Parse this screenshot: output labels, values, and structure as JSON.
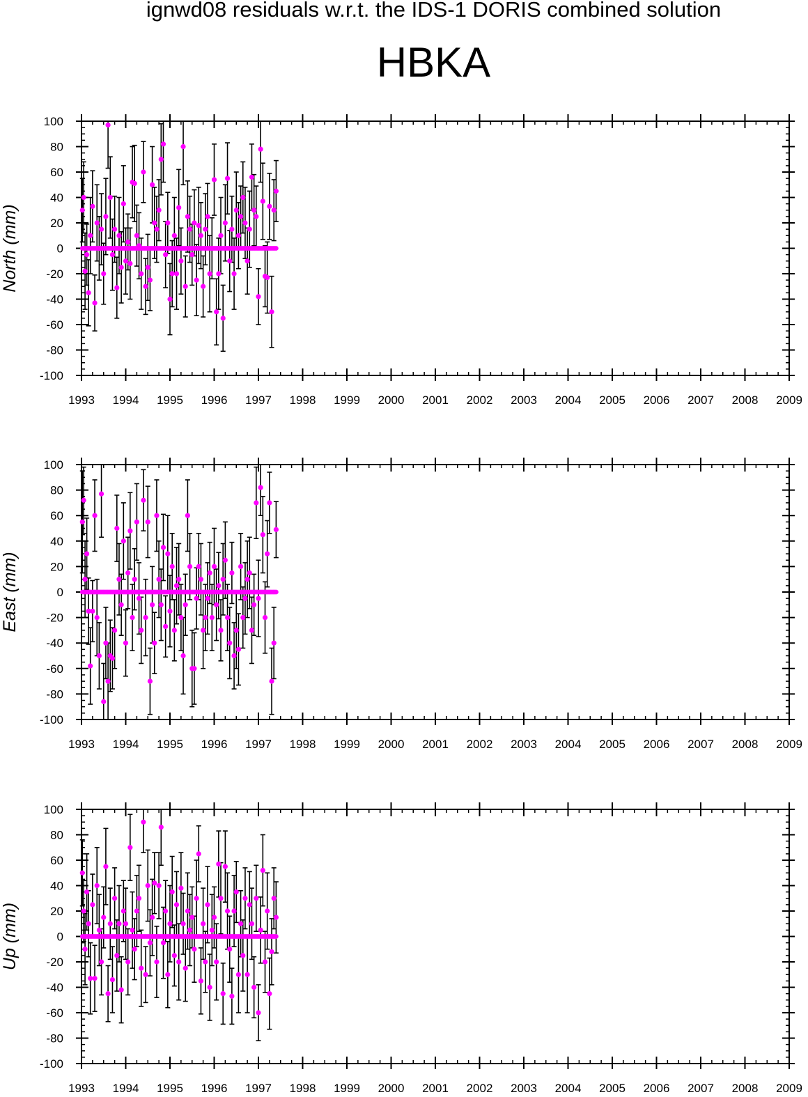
{
  "figure": {
    "suptitle": "ignwd08 residuals w.r.t. the IDS-1 DORIS combined solution",
    "station": "HBKA"
  },
  "colors": {
    "marker": "#ff00ff",
    "errorbar": "#000000",
    "axes": "#000000"
  },
  "chart_data": [
    {
      "type": "scatter",
      "ylabel": "North (mm)",
      "ylim": [
        -100,
        100
      ],
      "xlim": [
        1993,
        2009
      ],
      "x_ticks": [
        "1993",
        "1994",
        "1995",
        "1996",
        "1997",
        "1998",
        "1999",
        "2000",
        "2001",
        "2002",
        "2003",
        "2004",
        "2005",
        "2006",
        "2007",
        "2008",
        "2009"
      ],
      "y_ticks": [
        "-100",
        "-80",
        "-60",
        "-40",
        "-20",
        "0",
        "20",
        "40",
        "60",
        "80",
        "100"
      ],
      "series": [
        {
          "x": [
            1993.02,
            1993.05,
            1993.08,
            1993.12,
            1993.16,
            1993.2,
            1993.25,
            1993.3,
            1993.35,
            1993.4,
            1993.45,
            1993.5,
            1993.55,
            1993.6,
            1993.65,
            1993.7,
            1993.75,
            1993.8,
            1993.85,
            1993.9,
            1993.95,
            1994.0,
            1994.05,
            1994.1,
            1994.15,
            1994.2,
            1994.25,
            1994.3,
            1994.35,
            1994.4,
            1994.45,
            1994.5,
            1994.55,
            1994.6,
            1994.65,
            1994.7,
            1994.75,
            1994.8,
            1994.85,
            1994.9,
            1994.95,
            1995.0,
            1995.05,
            1995.1,
            1995.15,
            1995.2,
            1995.25,
            1995.3,
            1995.35,
            1995.4,
            1995.45,
            1995.5,
            1995.55,
            1995.6,
            1995.65,
            1995.7,
            1995.75,
            1995.8,
            1995.85,
            1995.9,
            1995.95,
            1996.0,
            1996.05,
            1996.1,
            1996.15,
            1996.2,
            1996.25,
            1996.3,
            1996.35,
            1996.4,
            1996.45,
            1996.5,
            1996.55,
            1996.6,
            1996.65,
            1996.7,
            1996.75,
            1996.8,
            1996.85,
            1996.9,
            1996.95,
            1997.0,
            1997.05,
            1997.1,
            1997.15,
            1997.2,
            1997.25,
            1997.3,
            1997.35,
            1997.4
          ],
          "y": [
            30,
            40,
            -18,
            -5,
            -35,
            10,
            33,
            -43,
            20,
            0,
            15,
            -20,
            25,
            97,
            40,
            -5,
            15,
            -31,
            10,
            -15,
            35,
            -10,
            5,
            -12,
            52,
            51,
            10,
            2,
            -20,
            60,
            -30,
            -15,
            -25,
            50,
            20,
            15,
            30,
            70,
            82,
            -5,
            20,
            -40,
            -20,
            10,
            -20,
            32,
            -10,
            80,
            -30,
            25,
            15,
            -5,
            20,
            -25,
            18,
            10,
            -30,
            15,
            25,
            -20,
            0,
            54,
            -50,
            -20,
            10,
            -55,
            20,
            55,
            -10,
            15,
            -20,
            30,
            10,
            25,
            40,
            20,
            -10,
            15,
            56,
            30,
            25,
            -38,
            78,
            37,
            -22,
            -23,
            33,
            -50,
            30,
            45
          ],
          "err": [
            25,
            28,
            30,
            24,
            26,
            30,
            28,
            22,
            30,
            25,
            28,
            24,
            30,
            34,
            32,
            28,
            26,
            24,
            30,
            28,
            30,
            26,
            22,
            28,
            28,
            30,
            24,
            26,
            28,
            24,
            22,
            26,
            24,
            30,
            28,
            26,
            24,
            28,
            30,
            26,
            24,
            28,
            26,
            30,
            28,
            30,
            26,
            30,
            24,
            28,
            26,
            24,
            26,
            28,
            30,
            26,
            24,
            28,
            26,
            30,
            24,
            28,
            26,
            28,
            30,
            26,
            30,
            28,
            24,
            26,
            28,
            30,
            26,
            24,
            28,
            28,
            26,
            30,
            26,
            28,
            24,
            22,
            26,
            30,
            24,
            28,
            26,
            28,
            24,
            24
          ]
        }
      ]
    },
    {
      "type": "scatter",
      "ylabel": "East (mm)",
      "ylim": [
        -100,
        100
      ],
      "xlim": [
        1993,
        2009
      ],
      "x_ticks": [
        "1993",
        "1994",
        "1995",
        "1996",
        "1997",
        "1998",
        "1999",
        "2000",
        "2001",
        "2002",
        "2003",
        "2004",
        "2005",
        "2006",
        "2007",
        "2008",
        "2009"
      ],
      "y_ticks": [
        "-100",
        "-80",
        "-60",
        "-40",
        "-20",
        "0",
        "20",
        "40",
        "60",
        "80",
        "100"
      ],
      "series": [
        {
          "x": [
            1993.02,
            1993.05,
            1993.08,
            1993.12,
            1993.16,
            1993.2,
            1993.25,
            1993.3,
            1993.35,
            1993.4,
            1993.45,
            1993.5,
            1993.55,
            1993.6,
            1993.65,
            1993.7,
            1993.75,
            1993.8,
            1993.85,
            1993.9,
            1993.95,
            1994.0,
            1994.05,
            1994.1,
            1994.15,
            1994.2,
            1994.25,
            1994.3,
            1994.35,
            1994.4,
            1994.45,
            1994.5,
            1994.55,
            1994.6,
            1994.65,
            1994.7,
            1994.75,
            1994.8,
            1994.85,
            1994.9,
            1994.95,
            1995.0,
            1995.05,
            1995.1,
            1995.15,
            1995.2,
            1995.25,
            1995.3,
            1995.35,
            1995.4,
            1995.45,
            1995.5,
            1995.55,
            1995.6,
            1995.65,
            1995.7,
            1995.75,
            1995.8,
            1995.85,
            1995.9,
            1995.95,
            1996.0,
            1996.05,
            1996.1,
            1996.15,
            1996.2,
            1996.25,
            1996.3,
            1996.35,
            1996.4,
            1996.45,
            1996.5,
            1996.55,
            1996.6,
            1996.65,
            1996.7,
            1996.75,
            1996.8,
            1996.85,
            1996.9,
            1996.95,
            1997.0,
            1997.05,
            1997.1,
            1997.15,
            1997.2,
            1997.25,
            1997.3,
            1997.35,
            1997.4
          ],
          "y": [
            55,
            72,
            10,
            30,
            -15,
            -58,
            -15,
            60,
            -20,
            -50,
            77,
            -86,
            -40,
            -70,
            -50,
            -52,
            -30,
            50,
            10,
            -10,
            40,
            -40,
            15,
            48,
            -20,
            10,
            55,
            -5,
            -30,
            72,
            -20,
            55,
            -70,
            -10,
            -40,
            60,
            10,
            -10,
            35,
            -27,
            30,
            -15,
            20,
            -30,
            5,
            10,
            -20,
            -50,
            -10,
            60,
            20,
            -60,
            -60,
            -5,
            20,
            10,
            -30,
            -20,
            -5,
            15,
            -20,
            20,
            -10,
            5,
            -30,
            10,
            25,
            -20,
            -40,
            15,
            -50,
            -30,
            -45,
            20,
            -20,
            -5,
            10,
            15,
            -30,
            -10,
            70,
            -5,
            82,
            45,
            -20,
            30,
            70,
            -70,
            -40,
            49
          ],
          "err": [
            40,
            26,
            30,
            28,
            26,
            30,
            24,
            28,
            30,
            26,
            34,
            30,
            28,
            30,
            28,
            24,
            30,
            26,
            28,
            24,
            30,
            26,
            28,
            30,
            26,
            24,
            30,
            28,
            26,
            24,
            30,
            28,
            26,
            30,
            24,
            28,
            30,
            28,
            26,
            24,
            30,
            28,
            26,
            24,
            30,
            28,
            26,
            30,
            24,
            28,
            26,
            30,
            28,
            24,
            26,
            28,
            30,
            26,
            28,
            24,
            26,
            30,
            28,
            26,
            24,
            28,
            30,
            26,
            28,
            24,
            26,
            30,
            28,
            26,
            24,
            28,
            30,
            28,
            26,
            24,
            28,
            30,
            22,
            30,
            28,
            26,
            24,
            26,
            28,
            22
          ]
        }
      ]
    },
    {
      "type": "scatter",
      "ylabel": "Up (mm)",
      "ylim": [
        -100,
        100
      ],
      "xlim": [
        1993,
        2009
      ],
      "x_ticks": [
        "1993",
        "1994",
        "1995",
        "1996",
        "1997",
        "1998",
        "1999",
        "2000",
        "2001",
        "2002",
        "2003",
        "2004",
        "2005",
        "2006",
        "2007",
        "2008",
        "2009"
      ],
      "y_ticks": [
        "-100",
        "-80",
        "-60",
        "-40",
        "-20",
        "0",
        "20",
        "40",
        "60",
        "80",
        "100"
      ],
      "series": [
        {
          "x": [
            1993.02,
            1993.05,
            1993.08,
            1993.12,
            1993.16,
            1993.2,
            1993.25,
            1993.3,
            1993.35,
            1993.4,
            1993.45,
            1993.5,
            1993.55,
            1993.6,
            1993.65,
            1993.7,
            1993.75,
            1993.8,
            1993.85,
            1993.9,
            1993.95,
            1994.0,
            1994.05,
            1994.1,
            1994.15,
            1994.2,
            1994.25,
            1994.3,
            1994.35,
            1994.4,
            1994.45,
            1994.5,
            1994.55,
            1994.6,
            1994.65,
            1994.7,
            1994.75,
            1994.8,
            1994.85,
            1994.9,
            1994.95,
            1995.0,
            1995.05,
            1995.1,
            1995.15,
            1995.2,
            1995.25,
            1995.3,
            1995.35,
            1995.4,
            1995.45,
            1995.5,
            1995.55,
            1995.6,
            1995.65,
            1995.7,
            1995.75,
            1995.8,
            1995.85,
            1995.9,
            1995.95,
            1996.0,
            1996.05,
            1996.1,
            1996.15,
            1996.2,
            1996.25,
            1996.3,
            1996.35,
            1996.4,
            1996.45,
            1996.5,
            1996.55,
            1996.6,
            1996.65,
            1996.7,
            1996.75,
            1996.8,
            1996.85,
            1996.9,
            1996.95,
            1997.0,
            1997.05,
            1997.1,
            1997.15,
            1997.2,
            1997.25,
            1997.3,
            1997.35,
            1997.4
          ],
          "y": [
            50,
            20,
            -10,
            35,
            10,
            -33,
            25,
            -33,
            40,
            5,
            -20,
            15,
            55,
            -45,
            10,
            -34,
            30,
            -15,
            10,
            -42,
            20,
            10,
            -20,
            70,
            5,
            -10,
            20,
            30,
            -25,
            90,
            -30,
            40,
            -5,
            15,
            42,
            -20,
            40,
            86,
            -5,
            20,
            -30,
            10,
            35,
            -15,
            25,
            -20,
            38,
            10,
            -25,
            20,
            5,
            15,
            -10,
            30,
            65,
            -35,
            10,
            -20,
            25,
            -40,
            5,
            15,
            -20,
            57,
            30,
            -45,
            55,
            20,
            -10,
            -47,
            20,
            35,
            -30,
            10,
            -15,
            30,
            -30,
            25,
            10,
            -40,
            30,
            -60,
            5,
            52,
            -20,
            20,
            -45,
            -12,
            30,
            15
          ],
          "err": [
            26,
            24,
            28,
            30,
            26,
            28,
            24,
            26,
            30,
            28,
            26,
            24,
            30,
            22,
            28,
            26,
            24,
            28,
            30,
            26,
            24,
            28,
            26,
            26,
            30,
            24,
            28,
            26,
            30,
            24,
            22,
            28,
            26,
            30,
            24,
            28,
            26,
            30,
            28,
            24,
            26,
            30,
            28,
            24,
            26,
            30,
            28,
            24,
            26,
            30,
            28,
            24,
            26,
            30,
            22,
            26,
            28,
            24,
            30,
            26,
            28,
            24,
            30,
            26,
            28,
            24,
            28,
            30,
            26,
            22,
            28,
            24,
            30,
            26,
            28,
            24,
            30,
            26,
            28,
            24,
            26,
            22,
            26,
            28,
            24,
            30,
            28,
            26,
            24,
            28
          ]
        }
      ]
    }
  ]
}
